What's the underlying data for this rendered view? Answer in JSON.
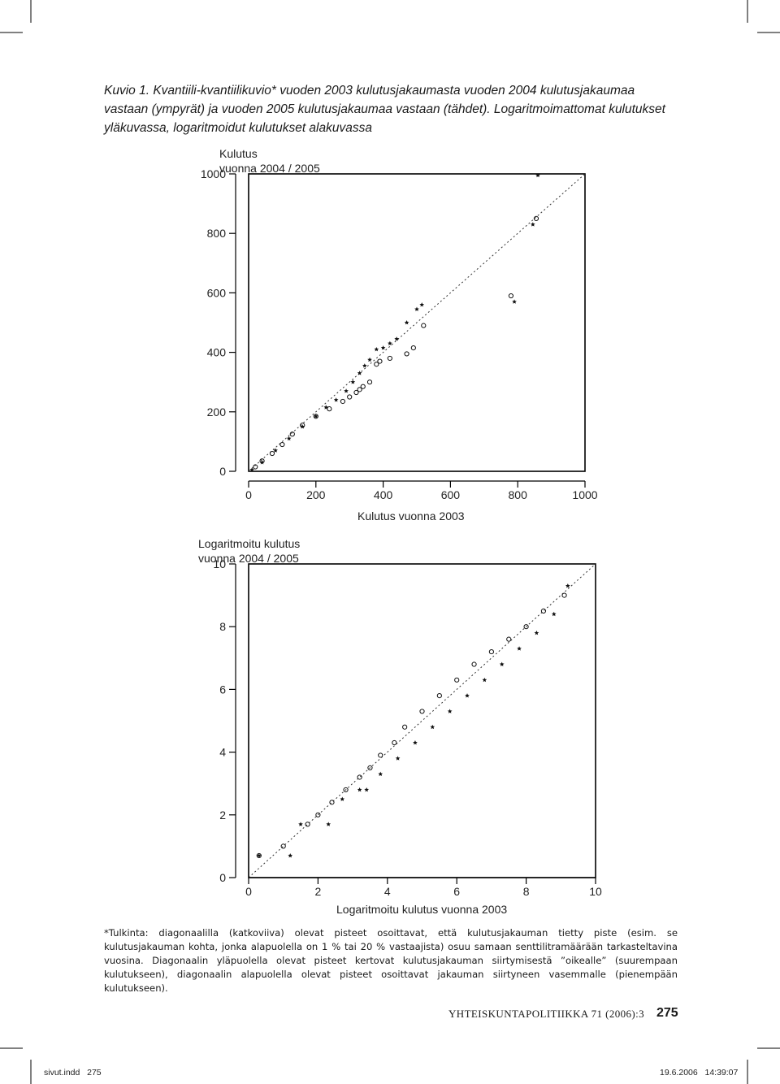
{
  "caption": {
    "label": "Kuvio 1.",
    "text": "Kvantiili-kvantiilikuvio* vuoden 2003 kulutusjakaumasta vuoden 2004 kulutusjakaumaa vastaan (ympyrät) ja vuoden 2005 kulutusjakaumaa vastaan (tähdet). Logaritmoimattomat kulutukset yläkuvassa, logaritmoidut kulutukset alakuvassa"
  },
  "plot_top": {
    "ylabel_line1": "Kulutus",
    "ylabel_line2": "vuonna 2004 / 2005",
    "xlabel": "Kulutus vuonna 2003"
  },
  "plot_bottom": {
    "ylabel_line1": "Logaritmoitu kulutus",
    "ylabel_line2": "vuonna 2004 / 2005",
    "xlabel": "Logaritmoitu kulutus vuonna 2003"
  },
  "chart_data": [
    {
      "type": "scatter",
      "title": "",
      "xlabel": "Kulutus vuonna 2003",
      "ylabel": "Kulutus vuonna 2004 / 2005",
      "xlim": [
        0,
        1000
      ],
      "ylim": [
        0,
        1000
      ],
      "xticks": [
        "0",
        "200",
        "400",
        "600",
        "800",
        "1000"
      ],
      "yticks": [
        "0",
        "200",
        "400",
        "600",
        "800",
        "1000"
      ],
      "reference_line": "diagonal y = x (dotted)",
      "series": [
        {
          "marker": "circle",
          "x": [
            20,
            40,
            70,
            100,
            130,
            160,
            200,
            240,
            280,
            300,
            320,
            330,
            340,
            360,
            380,
            390,
            420,
            470,
            490,
            520,
            780,
            855
          ],
          "y": [
            15,
            35,
            60,
            90,
            125,
            155,
            185,
            210,
            235,
            250,
            265,
            275,
            285,
            300,
            360,
            370,
            380,
            395,
            415,
            490,
            590,
            850
          ]
        },
        {
          "marker": "star",
          "x": [
            10,
            40,
            80,
            120,
            160,
            200,
            230,
            260,
            290,
            310,
            330,
            345,
            360,
            380,
            400,
            420,
            440,
            470,
            500,
            515,
            790,
            845,
            860
          ],
          "y": [
            5,
            30,
            70,
            110,
            150,
            185,
            215,
            240,
            270,
            300,
            330,
            355,
            375,
            410,
            415,
            430,
            445,
            500,
            545,
            560,
            570,
            830,
            995
          ]
        }
      ]
    },
    {
      "type": "scatter",
      "title": "",
      "xlabel": "Logaritmoitu kulutus vuonna 2003",
      "ylabel": "Logaritmoitu kulutus vuonna 2004 / 2005",
      "xlim": [
        0,
        10
      ],
      "ylim": [
        0,
        10
      ],
      "xticks": [
        "0",
        "2",
        "4",
        "6",
        "8",
        "10"
      ],
      "yticks": [
        "0",
        "2",
        "4",
        "6",
        "8",
        "10"
      ],
      "reference_line": "diagonal y = x (dotted)",
      "series": [
        {
          "marker": "circle",
          "x": [
            0.3,
            1.0,
            1.7,
            2.0,
            2.4,
            2.8,
            3.2,
            3.5,
            3.8,
            4.2,
            4.5,
            5.0,
            5.5,
            6.0,
            6.5,
            7.0,
            7.5,
            8.0,
            8.5,
            9.1
          ],
          "y": [
            0.7,
            1.0,
            1.7,
            2.0,
            2.4,
            2.8,
            3.2,
            3.5,
            3.9,
            4.3,
            4.8,
            5.3,
            5.8,
            6.3,
            6.8,
            7.2,
            7.6,
            8.0,
            8.5,
            9.0
          ]
        },
        {
          "marker": "star",
          "x": [
            0.3,
            1.2,
            1.5,
            2.3,
            2.7,
            3.2,
            3.4,
            3.8,
            4.3,
            4.8,
            5.3,
            5.8,
            6.3,
            6.8,
            7.3,
            7.8,
            8.3,
            8.8,
            9.2
          ],
          "y": [
            0.7,
            0.7,
            1.7,
            1.7,
            2.5,
            2.8,
            2.8,
            3.3,
            3.8,
            4.3,
            4.8,
            5.3,
            5.8,
            6.3,
            6.8,
            7.3,
            7.8,
            8.4,
            9.3
          ]
        }
      ]
    }
  ],
  "footnote": "*Tulkinta: diagonaalilla (katkoviiva) olevat pisteet osoittavat, että kulutusjakauman tietty piste (esim. se kulutusjakauman kohta, jonka alapuolella on 1 % tai 20 % vastaajista) osuu samaan senttilitramäärään tarkasteltavina vuosina. Diagonaalin yläpuolella olevat pisteet kertovat kulutusjakauman siirtymisestä ”oikealle” (suurempaan kulutukseen), diagonaalin alapuolella olevat pisteet osoittavat jakauman siirtyneen vasemmalle (pienempään kulutukseen).",
  "running_footer": {
    "journal": "YHTEISKUNTAPOLITIIKKA 71 (2006):3",
    "page": "275"
  },
  "slug": {
    "file": "sivut.indd",
    "file_page": "275",
    "date": "19.6.2006",
    "time": "14:39:07"
  }
}
